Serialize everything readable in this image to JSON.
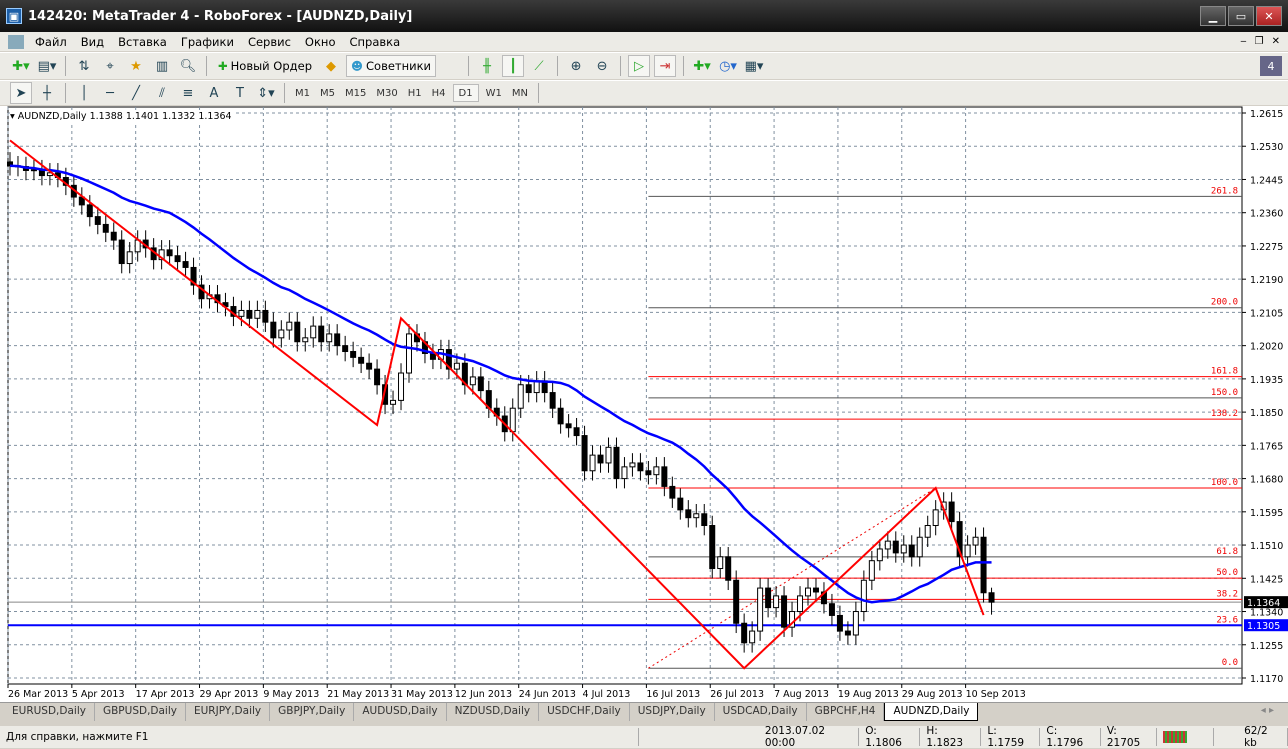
{
  "window": {
    "title": "142420: MetaTrader 4 - RoboForex - [AUDNZD,Daily]",
    "app_icon": "metatrader-icon"
  },
  "menu": [
    "Файл",
    "Вид",
    "Вставка",
    "Графики",
    "Сервис",
    "Окно",
    "Справка"
  ],
  "toolbar": {
    "new_order": "Новый Ордер",
    "experts": "Советники"
  },
  "timeframes": [
    "M1",
    "M5",
    "M15",
    "M30",
    "H1",
    "H4",
    "D1",
    "W1",
    "MN"
  ],
  "active_timeframe": "D1",
  "chart": {
    "header": "AUDNZD,Daily  1.1388 1.1401 1.1332 1.1364"
  },
  "chart_data": {
    "type": "candlestick",
    "symbol": "AUDNZD",
    "period": "Daily",
    "last_bar": {
      "open": 1.1388,
      "high": 1.1401,
      "low": 1.1332,
      "close": 1.1364
    },
    "closes": [
      1.248,
      1.2478,
      1.2468,
      1.247,
      1.2455,
      1.2462,
      1.245,
      1.243,
      1.24,
      1.238,
      1.235,
      1.233,
      1.231,
      1.229,
      1.223,
      1.226,
      1.229,
      1.227,
      1.224,
      1.2265,
      1.225,
      1.2235,
      1.222,
      1.2175,
      1.214,
      1.215,
      1.213,
      1.212,
      1.2095,
      1.211,
      1.209,
      1.211,
      1.208,
      1.204,
      1.206,
      1.208,
      1.203,
      1.204,
      1.207,
      1.203,
      1.205,
      1.202,
      1.2005,
      1.199,
      1.1975,
      1.196,
      1.192,
      1.187,
      1.188,
      1.195,
      1.205,
      1.203,
      1.2,
      1.1985,
      1.201,
      1.196,
      1.1975,
      1.192,
      1.194,
      1.1905,
      1.186,
      1.184,
      1.18,
      1.186,
      1.192,
      1.19,
      1.193,
      1.19,
      1.186,
      1.182,
      1.181,
      1.179,
      1.17,
      1.174,
      1.172,
      1.176,
      1.168,
      1.171,
      1.172,
      1.17,
      1.169,
      1.171,
      1.166,
      1.163,
      1.16,
      1.158,
      1.159,
      1.156,
      1.145,
      1.148,
      1.142,
      1.131,
      1.126,
      1.129,
      1.14,
      1.135,
      1.138,
      1.13,
      1.134,
      1.138,
      1.14,
      1.139,
      1.136,
      1.133,
      1.129,
      1.128,
      1.134,
      1.142,
      1.147,
      1.15,
      1.152,
      1.149,
      1.151,
      1.148,
      1.153,
      1.156,
      1.16,
      1.162,
      1.157,
      1.148,
      1.151,
      1.153,
      1.1388,
      1.1364
    ],
    "ylim": [
      1.117,
      1.2615
    ],
    "y_ticks": [
      "1.2615",
      "1.2530",
      "1.2445",
      "1.2360",
      "1.2275",
      "1.2190",
      "1.2105",
      "1.2020",
      "1.1935",
      "1.1850",
      "1.1765",
      "1.1680",
      "1.1595",
      "1.1510",
      "1.1425",
      "1.1340",
      "1.1255",
      "1.1170"
    ],
    "x_ticks": [
      "26 Mar 2013",
      "5 Apr 2013",
      "17 Apr 2013",
      "29 Apr 2013",
      "9 May 2013",
      "21 May 2013",
      "31 May 2013",
      "12 Jun 2013",
      "24 Jun 2013",
      "4 Jul 2013",
      "16 Jul 2013",
      "26 Jul 2013",
      "7 Aug 2013",
      "19 Aug 2013",
      "29 Aug 2013",
      "10 Sep 2013"
    ],
    "bid_label": "1.1364",
    "hline": {
      "label": "1.1305",
      "price": 1.1305,
      "color": "#0000ff"
    },
    "zigzag": [
      [
        0,
        1.2545
      ],
      [
        46,
        1.1817
      ],
      [
        49,
        1.209
      ],
      [
        92,
        1.1195
      ],
      [
        116,
        1.1656
      ],
      [
        122,
        1.1331
      ]
    ],
    "fibo": {
      "from": 1.1195,
      "to": 1.1656,
      "start_bar": 80,
      "levels": [
        {
          "label": "0.0",
          "ratio": 0,
          "color": "#555555"
        },
        {
          "label": "23.6",
          "ratio": 0.236,
          "color": "#555555"
        },
        {
          "label": "38.2",
          "ratio": 0.382,
          "color": "#ff0000"
        },
        {
          "label": "50.0",
          "ratio": 0.5,
          "color": "#ff0000"
        },
        {
          "label": "61.8",
          "ratio": 0.618,
          "color": "#555555"
        },
        {
          "label": "100.0",
          "ratio": 1,
          "color": "#ff0000"
        },
        {
          "label": "138.2",
          "ratio": 1.382,
          "color": "#ff0000"
        },
        {
          "label": "150.0",
          "ratio": 1.5,
          "color": "#555555"
        },
        {
          "label": "161.8",
          "ratio": 1.618,
          "color": "#ff0000"
        },
        {
          "label": "200.0",
          "ratio": 2,
          "color": "#555555"
        },
        {
          "label": "261.8",
          "ratio": 2.618,
          "color": "#555555"
        }
      ]
    },
    "colors": {
      "ma": "#0000ff",
      "zigzag": "#ff0000",
      "fractal": "#b03040",
      "candle": "#000000"
    }
  },
  "tabs": [
    "EURUSD,Daily",
    "GBPUSD,Daily",
    "EURJPY,Daily",
    "GBPJPY,Daily",
    "AUDUSD,Daily",
    "NZDUSD,Daily",
    "USDCHF,Daily",
    "USDJPY,Daily",
    "USDCAD,Daily",
    "GBPCHF,H4",
    "AUDNZD,Daily"
  ],
  "active_tab": "AUDNZD,Daily",
  "status": {
    "help": "Для справки, нажмите F1",
    "datetime": "2013.07.02 00:00",
    "open": "O: 1.1806",
    "high": "H: 1.1823",
    "low": "L: 1.1759",
    "close": "C: 1.1796",
    "volume": "V: 21705",
    "traffic": "62/2 kb"
  }
}
